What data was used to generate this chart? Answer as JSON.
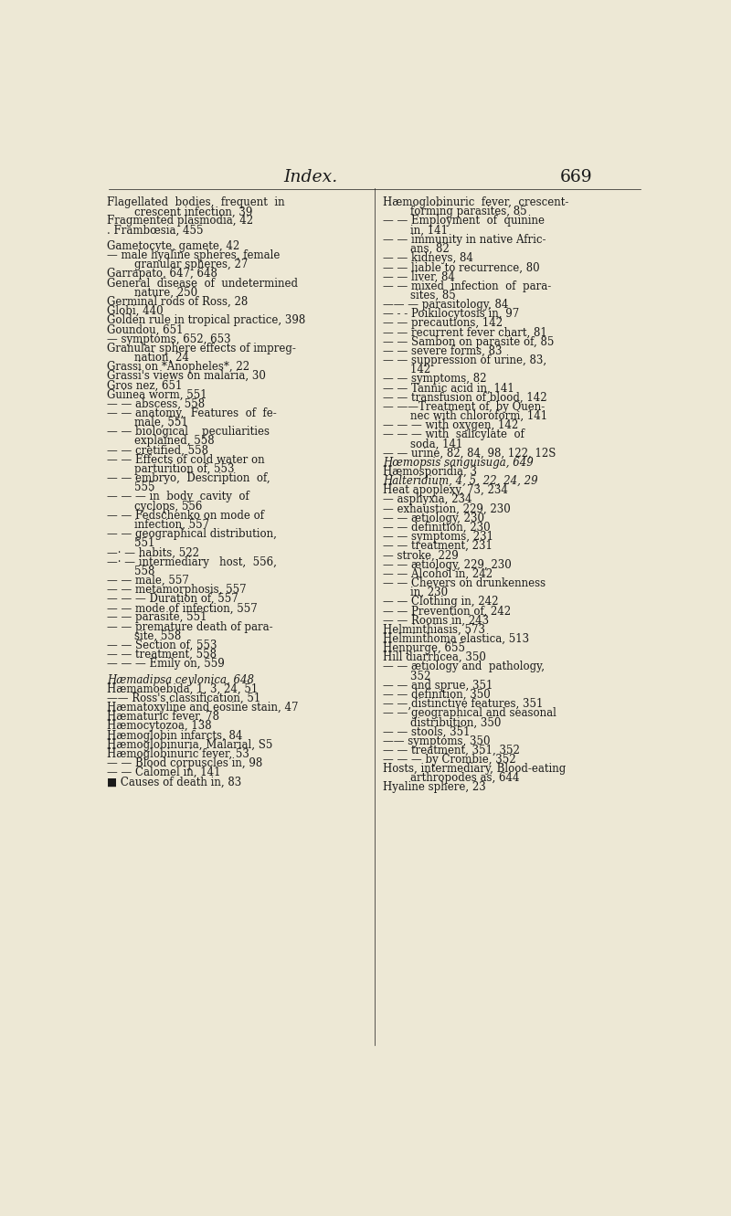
{
  "bg_color": "#ede8d5",
  "text_color": "#1a1a1a",
  "title": "Index.",
  "page_num": "669",
  "font_size": 8.5,
  "title_font_size": 13.5,
  "left_col": [
    "Flagellated  bodies,  frequent  in",
    "        crescent infection, 39",
    "Fragmented plasmodia, 42",
    ". Frambœsia, 455",
    "",
    "Gametocyte, gamete, 42",
    "— male hyaline spheres, female",
    "        granular spheres, 27",
    "Garrapato, 647, 648",
    "General  disease  of  undetermined",
    "        nature, 250",
    "Germinal rods of Ross, 28",
    "Globi, 440",
    "Golden rule in tropical practice, 398",
    "Goundou, 651",
    "— symptoms, 652, 653",
    "Granular sphere effects of impreg-",
    "        nation, 24",
    "Grassi on *Anopheles*, 22",
    "Grassi's views on malaria, 30",
    "Gros nez, 651",
    "Guinea worm, 551",
    "— — abscess, 558",
    "— — anatomy,  Features  of  fe-",
    "        male, 551",
    "— — biological    peculiarities",
    "        explained, 558",
    "— — cretified, 558",
    "— — Effects of cold water on",
    "        parturition of, 553",
    "— — embryo,  Description  of,",
    "        555",
    "— — — in  body  cavity  of",
    "        cyclops, 556",
    "— — Fedschenko on mode of",
    "        infection, 557",
    "— — geographical distribution,",
    "        551",
    "—· — habits, 522",
    "—· — intermediary   host,  556,",
    "        558",
    "— — male, 557",
    "— — metamorphosis, 557",
    "— — — Duration of, 557",
    "— — mode of infection, 557",
    "— — parasite, 551",
    "— — premature death of para-",
    "        site, 558",
    "— — Section of, 553",
    "— — treatment, 558",
    "— — — Emily on, 559",
    "",
    "*Hæmadipsa ceylonica*, 648",
    "Hæmamoebida, 1, 3, 24, 51",
    "—— Ross's classification, 51",
    "Hæmatoxyline and eosine stain, 47",
    "Hæmaturic fever, 78",
    "Hæmocytozoa, 138",
    "Hæmoglobin infarcts, 84",
    "Hæmoglobinuria, Malarial, S5",
    "Hæmoglobinuric fever, 53",
    "— — Blood corpuscles in, 98",
    "— — Calomel in, 141",
    "■ Causes of death in, 83"
  ],
  "right_col": [
    "Hæmoglobinuric  fever,  crescent-",
    "        forming parasites, 85",
    "— — Employment  of  quinine",
    "        in, 141",
    "— — immunity in native Afric-",
    "        ans, 82",
    "— — kidneys, 84",
    "— — liable to recurrence, 80",
    "— — liver, 84",
    "— — mixed  infection  of  para-",
    "        sites, 85",
    "—— — parasitology, 84",
    "— - - Poikilocytosis in, 97",
    "— — precautions, 142",
    "— — recurrent fever chart, 81",
    "— — Sambon on parasite of, 85",
    "— — severe forms, 83",
    "— — suppression of urine, 83,",
    "        142",
    "— — symptoms, 82",
    "— — Tannic acid in, 141",
    "— — transfusion of blood, 142",
    "— ——Treatment of, by Quen-",
    "        nec with chloroform, 141",
    "— — — with oxygen, 142",
    "— — — with  salicylate  of",
    "        soda, 141",
    "— — urine, 82, 84, 98, 122, 12S",
    "*Hœmopsis sanguisuga*, 649",
    "Hæmosporidia, 3",
    "*Halteridium*, 4, 5, 22, 24, 29",
    "Heat apoplexy, 73, 234",
    "— asphyxia, 234",
    "— exhaustion, 229, 230",
    "— — ætiology, 230",
    "— — definition, 230",
    "— — symptoms, 231",
    "— — treatment, 231",
    "— stroke, 229",
    "— — ætiology, 229, 230",
    "— — Alcohol in, 242",
    "— — Chevers on drunkenness",
    "        in, 230",
    "— — Clothing in, 242",
    "— — Prevention of, 242",
    "— — Rooms in, 243",
    "Helminthiasis, 573",
    "Helminthoma elastica, 513",
    "Henpurge, 655",
    "Hill diarrhcea, 350",
    "— — ætiology and  pathology,",
    "        352",
    "— — and sprue, 351",
    "— — definition, 350",
    "— — distinctive features, 351",
    "— —’geographical and seasonal",
    "        distribution, 350",
    "— — stools, 351",
    "—— symptoms, 350",
    "— — treatment, 351, 352",
    "— — — by Crombie, 352",
    "Hosts, intermediary, Blood-eating",
    "        arthropodes as, 644",
    "Hyaline sphere, 23"
  ]
}
